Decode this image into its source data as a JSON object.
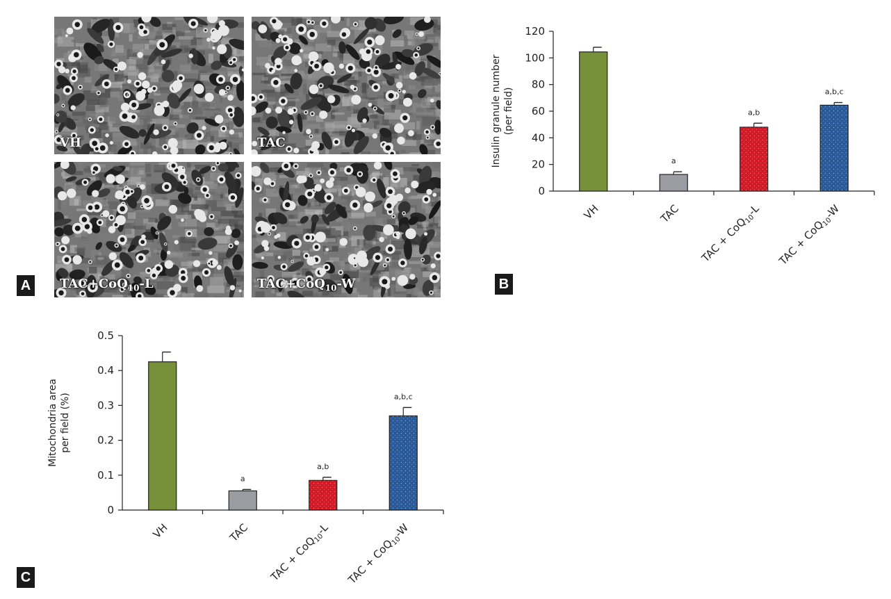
{
  "panels": {
    "a": {
      "letter": "A",
      "micrographs": [
        {
          "label": "VH"
        },
        {
          "label": "TAC"
        },
        {
          "label": "TAC+CoQ",
          "sub": "10",
          "suffix": "-L"
        },
        {
          "label": "TAC+CoQ",
          "sub": "10",
          "suffix": "-W"
        }
      ]
    },
    "b": {
      "letter": "B"
    },
    "c": {
      "letter": "C"
    }
  },
  "colors": {
    "VH": "#77903a",
    "TAC": "#9a9ca2",
    "L": "#d21b26",
    "W": "#2a5a9a"
  },
  "chart_data": [
    {
      "type": "bar",
      "categories": [
        "VH",
        "TAC",
        "TAC + CoQ10-L",
        "TAC + CoQ10-W"
      ],
      "category_labels": [
        {
          "text": "VH"
        },
        {
          "text": "TAC"
        },
        {
          "text": "TAC + CoQ",
          "sub": "10",
          "suffix": "-L"
        },
        {
          "text": "TAC + CoQ",
          "sub": "10",
          "suffix": "-W"
        }
      ],
      "values": [
        104.5,
        12.5,
        48,
        64.5
      ],
      "errors": [
        3.5,
        2,
        3,
        2
      ],
      "annotations": [
        "",
        "a",
        "a,b",
        "a,b,c"
      ],
      "ylabel_lines": [
        "Insulin granule number",
        "(per field)"
      ],
      "ylim": [
        0,
        120
      ],
      "yticks": [
        "0",
        "20",
        "40",
        "60",
        "80",
        "100",
        "120"
      ],
      "xlabel": "",
      "title": ""
    },
    {
      "type": "bar",
      "categories": [
        "VH",
        "TAC",
        "TAC + CoQ10-L",
        "TAC + CoQ10-W"
      ],
      "category_labels": [
        {
          "text": "VH"
        },
        {
          "text": "TAC"
        },
        {
          "text": "TAC + CoQ",
          "sub": "10",
          "suffix": "-L"
        },
        {
          "text": "TAC + CoQ",
          "sub": "10",
          "suffix": "-W"
        }
      ],
      "values": [
        0.425,
        0.055,
        0.085,
        0.27
      ],
      "errors": [
        0.028,
        0.004,
        0.009,
        0.024
      ],
      "annotations": [
        "",
        "a",
        "a,b",
        "a,b,c"
      ],
      "ylabel_lines": [
        "Mitochondria area",
        "per field (%)"
      ],
      "ylim": [
        0,
        0.5
      ],
      "yticks": [
        "0",
        "0.1",
        "0.2",
        "0.3",
        "0.4",
        "0.5"
      ],
      "xlabel": "",
      "title": ""
    }
  ]
}
